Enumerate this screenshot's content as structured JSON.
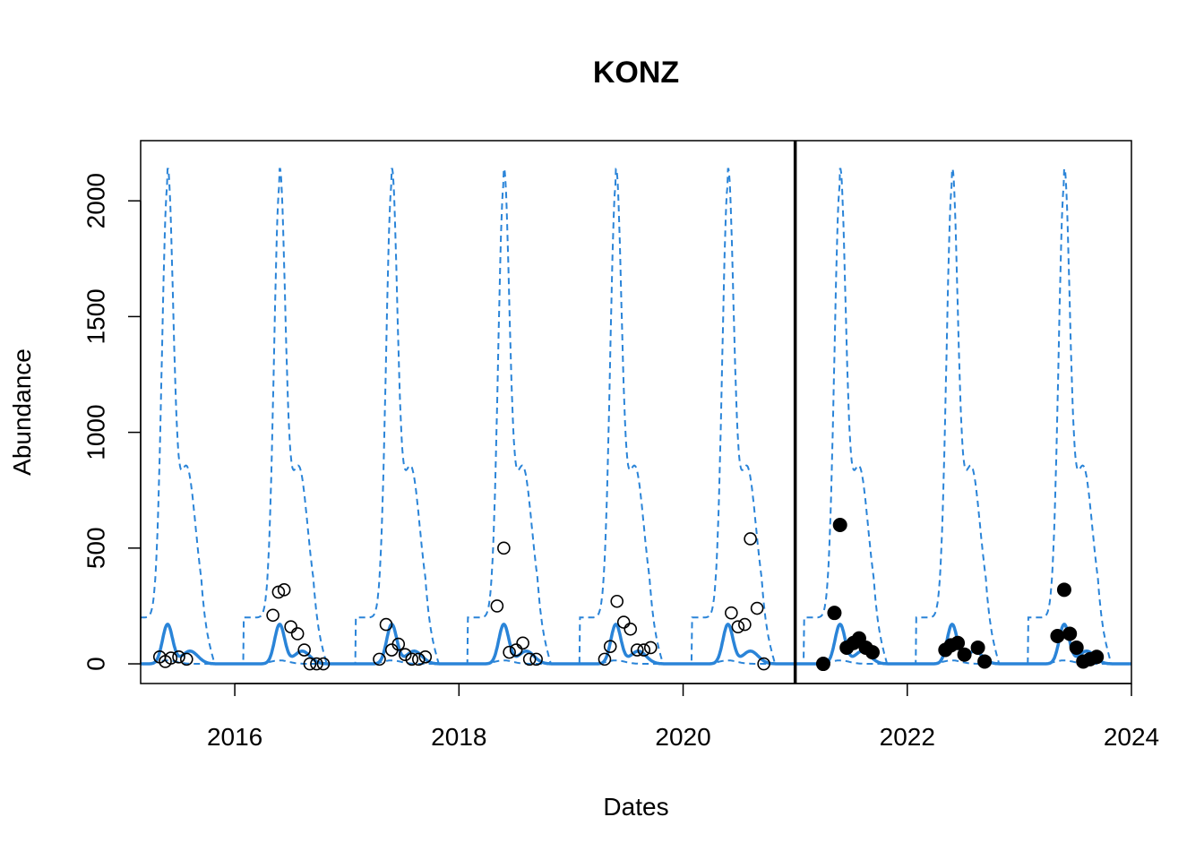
{
  "chart_data": {
    "type": "line",
    "title": "KONZ",
    "xlabel": "Dates",
    "ylabel": "Abundance",
    "xlim": [
      2015.16,
      2024.0
    ],
    "ylim": [
      -85,
      2260
    ],
    "x_ticks": [
      2016,
      2018,
      2020,
      2022,
      2024
    ],
    "x_tick_labels": [
      "2016",
      "2018",
      "2020",
      "2022",
      "2024"
    ],
    "y_ticks": [
      0,
      500,
      1000,
      1500,
      2000
    ],
    "y_tick_labels": [
      "0",
      "500",
      "1000",
      "1500",
      "2000"
    ],
    "grid": false,
    "forecast_start": 2021.0,
    "colors": {
      "forecast": "#2a84d8",
      "observed": "#000000",
      "divider": "#000000"
    },
    "observed_training": [
      [
        2015.33,
        30
      ],
      [
        2015.38,
        10
      ],
      [
        2015.43,
        25
      ],
      [
        2015.5,
        30
      ],
      [
        2015.57,
        20
      ],
      [
        2016.34,
        210
      ],
      [
        2016.39,
        310
      ],
      [
        2016.44,
        320
      ],
      [
        2016.5,
        160
      ],
      [
        2016.56,
        130
      ],
      [
        2016.62,
        60
      ],
      [
        2016.67,
        0
      ],
      [
        2016.73,
        0
      ],
      [
        2016.79,
        0
      ],
      [
        2017.29,
        20
      ],
      [
        2017.35,
        170
      ],
      [
        2017.4,
        60
      ],
      [
        2017.46,
        85
      ],
      [
        2017.52,
        40
      ],
      [
        2017.58,
        20
      ],
      [
        2017.64,
        20
      ],
      [
        2017.7,
        30
      ],
      [
        2018.34,
        250
      ],
      [
        2018.4,
        500
      ],
      [
        2018.45,
        50
      ],
      [
        2018.51,
        60
      ],
      [
        2018.57,
        90
      ],
      [
        2018.63,
        20
      ],
      [
        2018.69,
        20
      ],
      [
        2019.3,
        20
      ],
      [
        2019.35,
        75
      ],
      [
        2019.41,
        270
      ],
      [
        2019.47,
        180
      ],
      [
        2019.53,
        150
      ],
      [
        2019.59,
        60
      ],
      [
        2019.65,
        60
      ],
      [
        2019.71,
        70
      ],
      [
        2020.43,
        220
      ],
      [
        2020.49,
        160
      ],
      [
        2020.55,
        170
      ],
      [
        2020.6,
        540
      ],
      [
        2020.66,
        240
      ],
      [
        2020.72,
        0
      ]
    ],
    "observed_forecast": [
      [
        2021.25,
        0
      ],
      [
        2021.35,
        220
      ],
      [
        2021.4,
        600
      ],
      [
        2021.46,
        70
      ],
      [
        2021.52,
        90
      ],
      [
        2021.57,
        110
      ],
      [
        2021.63,
        70
      ],
      [
        2021.69,
        50
      ],
      [
        2022.34,
        60
      ],
      [
        2022.39,
        80
      ],
      [
        2022.45,
        90
      ],
      [
        2022.51,
        40
      ],
      [
        2022.63,
        70
      ],
      [
        2022.69,
        10
      ],
      [
        2023.34,
        120
      ],
      [
        2023.4,
        320
      ],
      [
        2023.45,
        130
      ],
      [
        2023.51,
        70
      ],
      [
        2023.57,
        10
      ],
      [
        2023.63,
        20
      ],
      [
        2023.69,
        30
      ]
    ],
    "season_peaks": [
      2015.4,
      2016.4,
      2017.4,
      2018.4,
      2019.4,
      2020.4,
      2021.4,
      2022.4,
      2023.4
    ],
    "mean_peak": 170,
    "upper_peak": 2070,
    "upper_baseline": 200,
    "upper_shoulder": 650,
    "lower_peak": 15,
    "series": [
      {
        "name": "",
        "role": "mean",
        "style": "solid"
      },
      {
        "name": "",
        "role": "upper",
        "style": "dashed"
      },
      {
        "name": "",
        "role": "lower",
        "style": "dashed"
      }
    ]
  }
}
